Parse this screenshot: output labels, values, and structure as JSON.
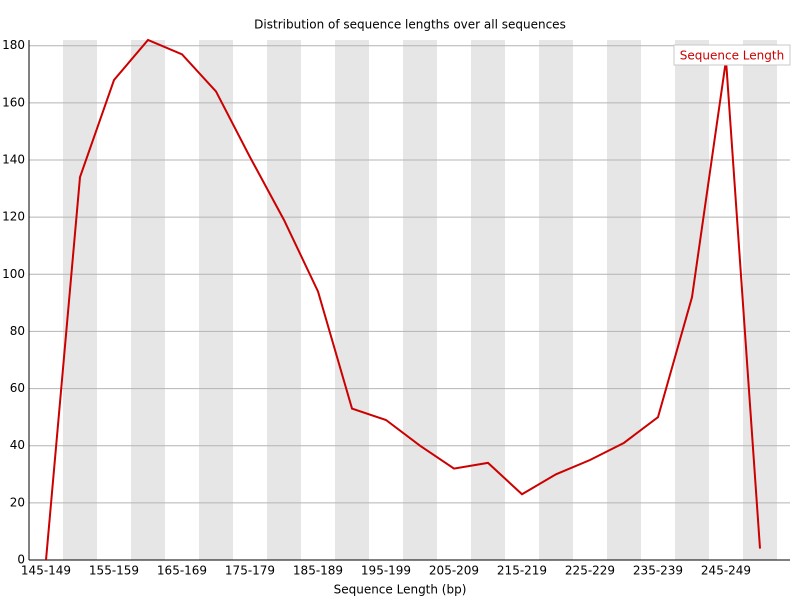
{
  "chart_data": {
    "type": "line",
    "title": "Distribution of sequence lengths over all sequences",
    "x_label": "Sequence Length (bp)",
    "categories": [
      "145-149",
      null,
      "155-159",
      null,
      "165-169",
      null,
      "175-179",
      null,
      "185-189",
      null,
      "195-199",
      null,
      "205-209",
      null,
      "215-219",
      null,
      "225-229",
      null,
      "235-239",
      null,
      "245-249",
      null
    ],
    "series": [
      {
        "name": "Sequence Length",
        "color": "#cc0000",
        "values": [
          0,
          134,
          168,
          182,
          177,
          164,
          141,
          119,
          94,
          53,
          49,
          40,
          32,
          34,
          23,
          30,
          35,
          41,
          50,
          92,
          175,
          4
        ]
      }
    ],
    "ylim": [
      0,
      182
    ],
    "yticks": [
      0,
      20,
      40,
      60,
      80,
      100,
      120,
      140,
      160,
      180
    ],
    "grid": true,
    "legend": "top-right"
  }
}
